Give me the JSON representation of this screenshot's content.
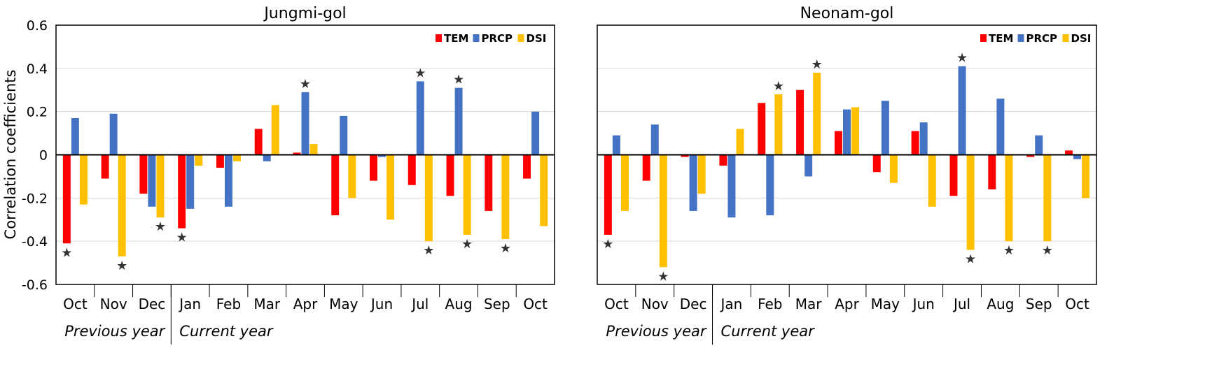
{
  "y_axis_label": "Correlation coefficients",
  "period_labels": [
    "Previous year",
    "Current year"
  ],
  "colors": {
    "TEM": "#ff0000",
    "PRCP": "#4472c4",
    "DSI": "#ffc000",
    "grid": "#d9d9d9",
    "frame": "#000000"
  },
  "star_symbol": "★",
  "chart_data": [
    {
      "type": "bar",
      "title": "Jungmi-gol",
      "ylabel": "Correlation coefficients",
      "ylim": [
        -0.6,
        0.6
      ],
      "yticks": [
        "0.6",
        "0.4",
        "0.2",
        "0",
        "-0.2",
        "-0.4",
        "-0.6"
      ],
      "grid": true,
      "legend_position": "top-right",
      "categories": [
        "Oct",
        "Nov",
        "Dec",
        "Jan",
        "Feb",
        "Mar",
        "Apr",
        "May",
        "Jun",
        "Jul",
        "Aug",
        "Sep",
        "Oct"
      ],
      "groups": [
        {
          "label": "Previous year",
          "categories": 3
        },
        {
          "label": "Current year",
          "categories": 10
        }
      ],
      "series": [
        {
          "name": "TEM",
          "values": [
            -0.41,
            -0.11,
            -0.18,
            -0.34,
            -0.06,
            0.12,
            0.01,
            -0.28,
            -0.12,
            -0.14,
            -0.19,
            -0.26,
            -0.11
          ]
        },
        {
          "name": "PRCP",
          "values": [
            0.17,
            0.19,
            -0.24,
            -0.25,
            -0.24,
            -0.03,
            0.29,
            0.18,
            -0.01,
            0.34,
            0.31,
            0.0,
            0.2
          ]
        },
        {
          "name": "DSI",
          "values": [
            -0.23,
            -0.47,
            -0.29,
            -0.05,
            -0.03,
            0.23,
            0.05,
            -0.2,
            -0.3,
            -0.4,
            -0.37,
            -0.39,
            -0.33
          ]
        }
      ],
      "significance_stars": [
        {
          "category": 0,
          "series": "TEM"
        },
        {
          "category": 1,
          "series": "DSI"
        },
        {
          "category": 2,
          "series": "DSI"
        },
        {
          "category": 3,
          "series": "TEM"
        },
        {
          "category": 6,
          "series": "PRCP"
        },
        {
          "category": 9,
          "series": "PRCP"
        },
        {
          "category": 9,
          "series": "DSI"
        },
        {
          "category": 10,
          "series": "PRCP"
        },
        {
          "category": 10,
          "series": "DSI"
        },
        {
          "category": 11,
          "series": "DSI"
        }
      ]
    },
    {
      "type": "bar",
      "title": "Neonam-gol",
      "ylabel": "",
      "ylim": [
        -0.6,
        0.6
      ],
      "grid": true,
      "legend_position": "top-right",
      "categories": [
        "Oct",
        "Nov",
        "Dec",
        "Jan",
        "Feb",
        "Mar",
        "Apr",
        "May",
        "Jun",
        "Jul",
        "Aug",
        "Sep",
        "Oct"
      ],
      "groups": [
        {
          "label": "Previous year",
          "categories": 3
        },
        {
          "label": "Current year",
          "categories": 10
        }
      ],
      "series": [
        {
          "name": "TEM",
          "values": [
            -0.37,
            -0.12,
            -0.01,
            -0.05,
            0.24,
            0.3,
            0.11,
            -0.08,
            0.11,
            -0.19,
            -0.16,
            -0.01,
            0.02
          ]
        },
        {
          "name": "PRCP",
          "values": [
            0.09,
            0.14,
            -0.26,
            -0.29,
            -0.28,
            -0.1,
            0.21,
            0.25,
            0.15,
            0.41,
            0.26,
            0.09,
            -0.02
          ]
        },
        {
          "name": "DSI",
          "values": [
            -0.26,
            -0.52,
            -0.18,
            0.12,
            0.28,
            0.38,
            0.22,
            -0.13,
            -0.24,
            -0.44,
            -0.4,
            -0.4,
            -0.2
          ]
        }
      ],
      "significance_stars": [
        {
          "category": 0,
          "series": "TEM"
        },
        {
          "category": 1,
          "series": "DSI"
        },
        {
          "category": 4,
          "series": "DSI"
        },
        {
          "category": 5,
          "series": "DSI"
        },
        {
          "category": 9,
          "series": "PRCP"
        },
        {
          "category": 9,
          "series": "DSI"
        },
        {
          "category": 10,
          "series": "DSI"
        },
        {
          "category": 11,
          "series": "DSI"
        }
      ]
    }
  ]
}
